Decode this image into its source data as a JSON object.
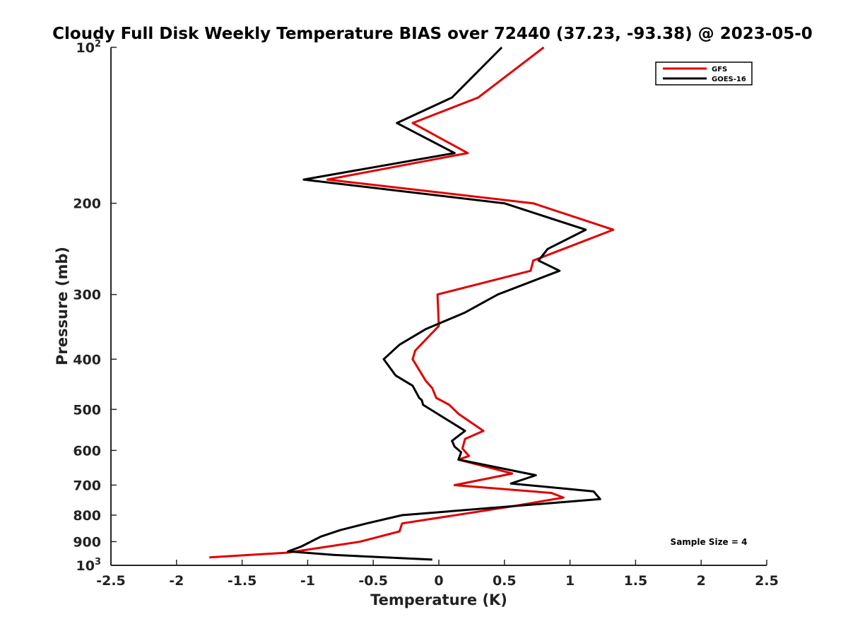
{
  "chart_data": {
    "type": "line",
    "title": "Cloudy Full Disk Weekly Temperature BIAS over 72440 (37.23, -93.38) @ 2023-05-0",
    "xlabel": "Temperature (K)",
    "ylabel": "Pressure (mb)",
    "xlim": [
      -2.5,
      2.5
    ],
    "ylim": [
      1000,
      100
    ],
    "yscale": "log",
    "y_inverted": true,
    "xticks": [
      -2.5,
      -2,
      -1.5,
      -1,
      -0.5,
      0,
      0.5,
      1,
      1.5,
      2,
      2.5
    ],
    "xtick_labels": [
      "-2.5",
      "-2",
      "-1.5",
      "-1",
      "-0.5",
      "0",
      "0.5",
      "1",
      "1.5",
      "2",
      "2.5"
    ],
    "yticks": [
      100,
      200,
      300,
      400,
      500,
      600,
      700,
      800,
      900,
      1000
    ],
    "ytick_labels": [
      {
        "base": "10",
        "exp": "2"
      },
      {
        "base": "200",
        "exp": ""
      },
      {
        "base": "300",
        "exp": ""
      },
      {
        "base": "400",
        "exp": ""
      },
      {
        "base": "500",
        "exp": ""
      },
      {
        "base": "600",
        "exp": ""
      },
      {
        "base": "700",
        "exp": ""
      },
      {
        "base": "800",
        "exp": ""
      },
      {
        "base": "900",
        "exp": ""
      },
      {
        "base": "10",
        "exp": "3"
      }
    ],
    "grid": false,
    "legend": "top-right",
    "annotation": "Sample Size = 4",
    "series": [
      {
        "name": "GFS",
        "color": "#e00000",
        "points": [
          [
            0.8,
            100
          ],
          [
            0.3,
            125
          ],
          [
            -0.2,
            140
          ],
          [
            0.22,
            160
          ],
          [
            -0.85,
            180
          ],
          [
            0.72,
            200
          ],
          [
            1.33,
            225
          ],
          [
            0.95,
            245
          ],
          [
            0.72,
            258
          ],
          [
            0.7,
            270
          ],
          [
            -0.01,
            300
          ],
          [
            0.0,
            345
          ],
          [
            -0.18,
            385
          ],
          [
            -0.2,
            400
          ],
          [
            -0.1,
            440
          ],
          [
            -0.05,
            455
          ],
          [
            -0.02,
            475
          ],
          [
            0.08,
            490
          ],
          [
            0.15,
            510
          ],
          [
            0.34,
            550
          ],
          [
            0.2,
            570
          ],
          [
            0.18,
            595
          ],
          [
            0.23,
            615
          ],
          [
            0.15,
            625
          ],
          [
            0.56,
            665
          ],
          [
            0.12,
            700
          ],
          [
            0.86,
            725
          ],
          [
            0.95,
            740
          ],
          [
            0.55,
            770
          ],
          [
            -0.28,
            830
          ],
          [
            -0.3,
            860
          ],
          [
            -0.6,
            900
          ],
          [
            -1.15,
            945
          ],
          [
            -1.75,
            965
          ]
        ]
      },
      {
        "name": "GOES-16",
        "color": "#000000",
        "points": [
          [
            0.48,
            100
          ],
          [
            0.1,
            125
          ],
          [
            -0.32,
            140
          ],
          [
            0.12,
            160
          ],
          [
            -1.03,
            180
          ],
          [
            0.5,
            200
          ],
          [
            1.12,
            225
          ],
          [
            0.83,
            245
          ],
          [
            0.76,
            258
          ],
          [
            0.92,
            270
          ],
          [
            0.45,
            300
          ],
          [
            0.2,
            325
          ],
          [
            -0.1,
            350
          ],
          [
            -0.3,
            375
          ],
          [
            -0.42,
            400
          ],
          [
            -0.33,
            430
          ],
          [
            -0.2,
            450
          ],
          [
            -0.15,
            475
          ],
          [
            -0.13,
            480
          ],
          [
            -0.12,
            490
          ],
          [
            0.2,
            550
          ],
          [
            0.1,
            575
          ],
          [
            0.12,
            590
          ],
          [
            0.17,
            605
          ],
          [
            0.15,
            625
          ],
          [
            0.74,
            670
          ],
          [
            0.55,
            695
          ],
          [
            1.18,
            720
          ],
          [
            1.23,
            745
          ],
          [
            -0.28,
            800
          ],
          [
            -0.55,
            830
          ],
          [
            -0.75,
            855
          ],
          [
            -0.9,
            880
          ],
          [
            -1.05,
            920
          ],
          [
            -1.15,
            940
          ],
          [
            -0.8,
            955
          ],
          [
            -0.05,
            975
          ]
        ]
      }
    ]
  }
}
